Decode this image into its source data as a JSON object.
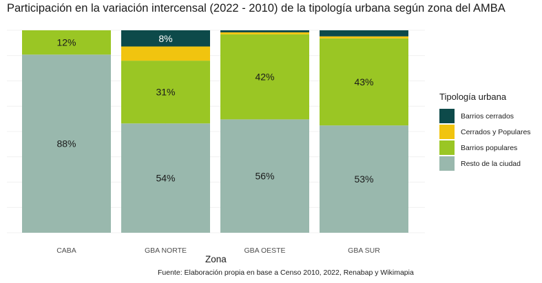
{
  "chart_data": {
    "type": "bar",
    "stacked": true,
    "normalized": true,
    "title": "Participación en la variación intercensal (2022 - 2010) de la tipología urbana según zona del AMBA",
    "xlabel": "Zona",
    "ylabel": "",
    "caption": "Fuente: Elaboración propia en base a Censo 2010, 2022, Renabap y Wikimapia",
    "categories": [
      "CABA",
      "GBA NORTE",
      "GBA OESTE",
      "GBA SUR"
    ],
    "legend": {
      "title": "Tipología urbana",
      "position": "right"
    },
    "grid": true,
    "ylim": [
      0,
      100
    ],
    "series": [
      {
        "name": "Barrios cerrados",
        "color": "#0d4a4a",
        "values": [
          0,
          8,
          1,
          3
        ],
        "labels": [
          "",
          "8%",
          "",
          ""
        ]
      },
      {
        "name": "Cerrados y Populares",
        "color": "#f1c40f",
        "values": [
          0,
          7,
          1,
          1
        ],
        "labels": [
          "",
          "",
          "",
          ""
        ]
      },
      {
        "name": "Barrios populares",
        "color": "#9ac624",
        "values": [
          12,
          31,
          42,
          43
        ],
        "labels": [
          "12%",
          "31%",
          "42%",
          "43%"
        ]
      },
      {
        "name": "Resto de la ciudad",
        "color": "#99b8ad",
        "values": [
          88,
          54,
          56,
          53
        ],
        "labels": [
          "88%",
          "54%",
          "56%",
          "53%"
        ]
      }
    ]
  }
}
